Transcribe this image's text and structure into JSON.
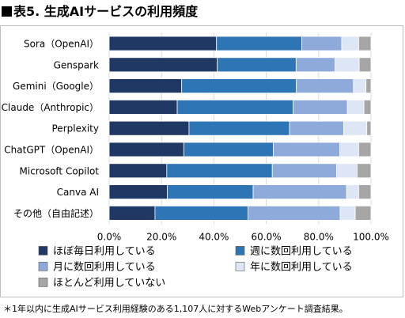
{
  "title": "表5. 生成AIサービスの利用頻度",
  "footnote": "＊1年以内に生成AIサービス利用経験のある1,107人に対するWebアンケート調査結果。",
  "chart_data": {
    "type": "bar",
    "orientation": "horizontal",
    "stacked": true,
    "categories": [
      "Sora（OpenAI）",
      "Genspark",
      "Gemini（Google）",
      "Claude（Anthropic）",
      "Perplexity",
      "ChatGPT（OpenAI）",
      "Microsoft Copilot",
      "Canva AI",
      "その他（自由記述）"
    ],
    "series": [
      {
        "name": "ほぼ毎日利用している",
        "color": "#1f3864",
        "values": [
          41,
          41.3,
          27.7,
          26,
          30.5,
          28.5,
          22,
          22.2,
          17.5
        ]
      },
      {
        "name": "週に数回利用している",
        "color": "#2e75b6",
        "values": [
          32.6,
          30.1,
          43.8,
          44.3,
          38.4,
          34.2,
          40.3,
          32.8,
          35.5
        ]
      },
      {
        "name": "月に数回利用している",
        "color": "#8eaadb",
        "values": [
          15.2,
          14.9,
          21.8,
          20.7,
          20.7,
          25.4,
          24.6,
          35.7,
          35.2
        ]
      },
      {
        "name": "年に数回利用している",
        "color": "#dde6f4",
        "values": [
          6.5,
          9.2,
          4.8,
          6.3,
          8.8,
          7.2,
          7.8,
          4.6,
          5.8
        ]
      },
      {
        "name": "ほとんど利用していない",
        "color": "#a6a6a6",
        "values": [
          4.7,
          4.5,
          1.9,
          2.7,
          1.6,
          4.7,
          5.3,
          4.7,
          6
        ]
      }
    ],
    "xlim": [
      0,
      100
    ],
    "xticks": [
      "0.0%",
      "20.0%",
      "40.0%",
      "60.0%",
      "80.0%",
      "100.0%"
    ],
    "grid": true,
    "legend_position": "bottom"
  }
}
